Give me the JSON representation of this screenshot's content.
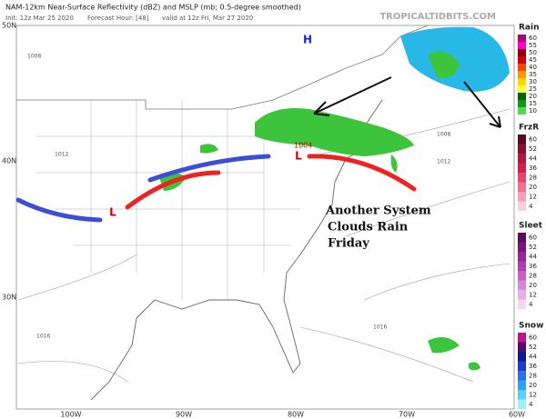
{
  "header": {
    "title": "NAM-12km Near-Surface Reflectivity (dBZ) and MSLP (mb; 0.5-degree smoothed)",
    "init": "Init: 12z Mar 25 2020",
    "forecast_hour": "Forecast Hour: [48]",
    "valid": "valid at 12z Fri, Mar 27 2020",
    "site": "TROPICALTIDBITS.COM"
  },
  "map": {
    "lat_labels": [
      "50N",
      "40N",
      "30N"
    ],
    "lon_labels": [
      "100W",
      "90W",
      "80W",
      "70W",
      "60W"
    ],
    "pressure_label": "1004",
    "low_labels": [
      "L",
      "L"
    ],
    "high_label": "H",
    "isobar_labels": [
      "1008",
      "1012",
      "1016",
      "1008",
      "1012",
      "1016"
    ]
  },
  "annotation": [
    "Another System",
    "Clouds Rain",
    "Friday"
  ],
  "legends": [
    {
      "title": "Rain",
      "ticks": [
        60,
        55,
        50,
        45,
        40,
        35,
        30,
        25,
        20,
        15,
        10
      ],
      "colors": [
        "#b0007c",
        "#ff00c8",
        "#8b0000",
        "#d40000",
        "#ff4500",
        "#ff9900",
        "#ffd700",
        "#ffff33",
        "#006400",
        "#0a9c0a",
        "#4ed94e"
      ]
    },
    {
      "title": "FrzR",
      "ticks": [
        60,
        52,
        44,
        36,
        28,
        20,
        12,
        4
      ],
      "colors": [
        "#5a0a20",
        "#8a1030",
        "#b01840",
        "#d02050",
        "#e8456e",
        "#f07090",
        "#f5a0b5",
        "#fad0dc"
      ]
    },
    {
      "title": "Sleet",
      "ticks": [
        60,
        52,
        44,
        36,
        28,
        20,
        12,
        4
      ],
      "colors": [
        "#5a0a5a",
        "#7a147a",
        "#962596",
        "#b03cb0",
        "#c860c8",
        "#d888d8",
        "#e6b0e6",
        "#f2d8f2"
      ]
    },
    {
      "title": "Snow",
      "ticks": [
        60,
        52,
        44,
        36,
        28,
        20,
        12,
        4
      ],
      "colors": [
        "#c0148c",
        "#5a0a6a",
        "#0a1a8c",
        "#1e3cc8",
        "#2e6ef0",
        "#30a0f8",
        "#58d0f8",
        "#a0f0fa"
      ]
    }
  ]
}
